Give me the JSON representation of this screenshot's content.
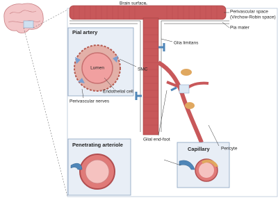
{
  "labels": {
    "brain_surface": "Brain surface",
    "perivascular_space": [
      "Perivascular space",
      "(Virchow-Robin space)"
    ],
    "pia_mater": "Pia mater",
    "glia_limitans": "Glia limitans",
    "smc": "SMC",
    "endothelial_cell": "Endothelial cell",
    "perivascular_nerves": "Perivascular nerves",
    "lumen": "Lumen",
    "glial_end_foot": "Glial end-foot",
    "pericyte": "Pericyte"
  },
  "insets": {
    "pial_artery": "Pial artery",
    "penetrating_arteriole": "Penetrating arteriole",
    "capillary": "Capillary"
  }
}
